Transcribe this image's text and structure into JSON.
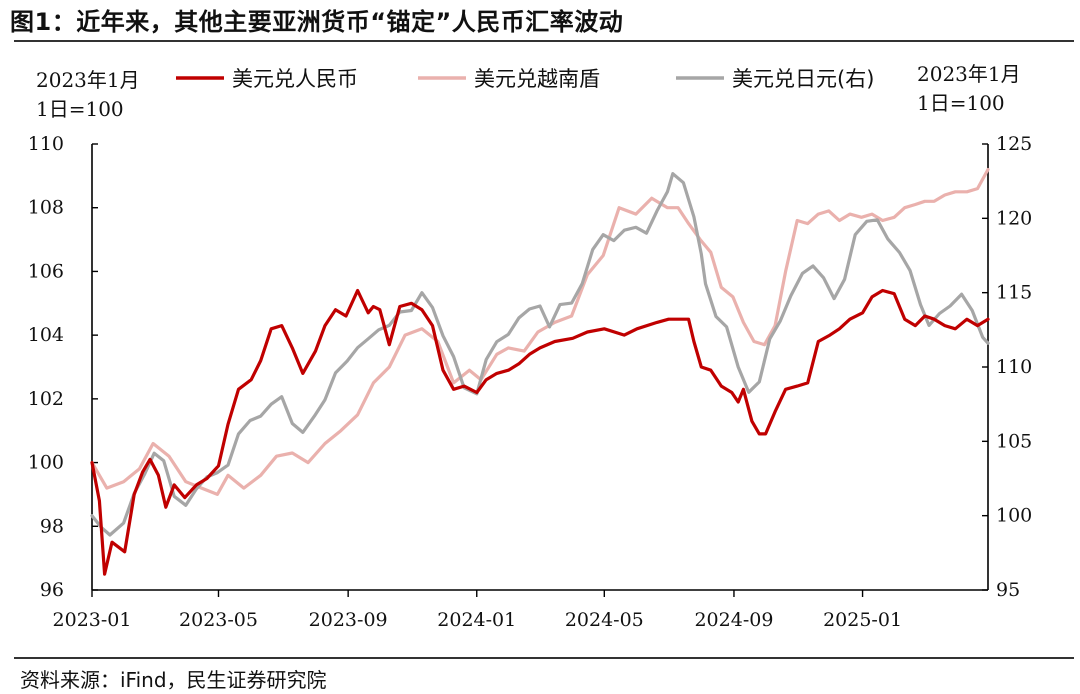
{
  "figure": {
    "title": "图1：近年来，其他主要亚洲货币“锚定”人民币汇率波动",
    "source": "资料来源：iFind，民生证券研究院",
    "left_unit": [
      "2023年1月",
      "1日=100"
    ],
    "right_unit": [
      "2023年1月",
      "1日=100"
    ]
  },
  "chart_data": {
    "type": "line",
    "x_labels": [
      "2023-01",
      "2023-05",
      "2023-09",
      "2024-01",
      "2024-05",
      "2024-09",
      "2025-01"
    ],
    "x_range": [
      "2023-01-01",
      "2025-04-30"
    ],
    "y_left": {
      "range": [
        96,
        110
      ],
      "ticks": [
        96,
        98,
        100,
        102,
        104,
        106,
        108,
        110
      ]
    },
    "y_right": {
      "range": [
        95,
        125
      ],
      "ticks": [
        95,
        100,
        105,
        110,
        115,
        120,
        125
      ]
    },
    "legend": {
      "placement": "top"
    },
    "series": [
      {
        "name": "美元兑人民币",
        "axis": "left",
        "color": "#c00000",
        "points": [
          [
            "2023-01-01",
            100.0
          ],
          [
            "2023-01-08",
            98.8
          ],
          [
            "2023-01-13",
            96.5
          ],
          [
            "2023-01-20",
            97.5
          ],
          [
            "2023-02-01",
            97.2
          ],
          [
            "2023-02-10",
            99.0
          ],
          [
            "2023-02-18",
            99.7
          ],
          [
            "2023-02-25",
            100.1
          ],
          [
            "2023-03-05",
            99.6
          ],
          [
            "2023-03-12",
            98.6
          ],
          [
            "2023-03-20",
            99.3
          ],
          [
            "2023-03-30",
            98.9
          ],
          [
            "2023-04-10",
            99.3
          ],
          [
            "2023-04-20",
            99.5
          ],
          [
            "2023-05-01",
            99.9
          ],
          [
            "2023-05-10",
            101.2
          ],
          [
            "2023-05-20",
            102.3
          ],
          [
            "2023-06-01",
            102.6
          ],
          [
            "2023-06-10",
            103.2
          ],
          [
            "2023-06-20",
            104.2
          ],
          [
            "2023-06-30",
            104.3
          ],
          [
            "2023-07-10",
            103.6
          ],
          [
            "2023-07-20",
            102.8
          ],
          [
            "2023-08-01",
            103.5
          ],
          [
            "2023-08-10",
            104.3
          ],
          [
            "2023-08-20",
            104.8
          ],
          [
            "2023-08-30",
            104.6
          ],
          [
            "2023-09-10",
            105.4
          ],
          [
            "2023-09-20",
            104.7
          ],
          [
            "2023-09-25",
            104.9
          ],
          [
            "2023-10-01",
            104.8
          ],
          [
            "2023-10-10",
            103.7
          ],
          [
            "2023-10-20",
            104.9
          ],
          [
            "2023-10-31",
            105.0
          ],
          [
            "2023-11-10",
            104.8
          ],
          [
            "2023-11-20",
            104.3
          ],
          [
            "2023-11-30",
            102.9
          ],
          [
            "2023-12-10",
            102.3
          ],
          [
            "2023-12-20",
            102.4
          ],
          [
            "2024-01-01",
            102.2
          ],
          [
            "2024-01-10",
            102.6
          ],
          [
            "2024-01-20",
            102.8
          ],
          [
            "2024-01-31",
            102.9
          ],
          [
            "2024-02-10",
            103.1
          ],
          [
            "2024-02-20",
            103.4
          ],
          [
            "2024-03-01",
            103.6
          ],
          [
            "2024-03-15",
            103.8
          ],
          [
            "2024-04-01",
            103.9
          ],
          [
            "2024-04-15",
            104.1
          ],
          [
            "2024-05-01",
            104.2
          ],
          [
            "2024-05-20",
            104.0
          ],
          [
            "2024-06-01",
            104.2
          ],
          [
            "2024-06-20",
            104.4
          ],
          [
            "2024-07-01",
            104.5
          ],
          [
            "2024-07-20",
            104.5
          ],
          [
            "2024-07-25",
            103.8
          ],
          [
            "2024-08-01",
            103.0
          ],
          [
            "2024-08-10",
            102.9
          ],
          [
            "2024-08-20",
            102.4
          ],
          [
            "2024-08-30",
            102.2
          ],
          [
            "2024-09-05",
            101.9
          ],
          [
            "2024-09-10",
            102.3
          ],
          [
            "2024-09-18",
            101.3
          ],
          [
            "2024-09-25",
            100.9
          ],
          [
            "2024-10-01",
            100.9
          ],
          [
            "2024-10-10",
            101.6
          ],
          [
            "2024-10-20",
            102.3
          ],
          [
            "2024-10-31",
            102.4
          ],
          [
            "2024-11-10",
            102.5
          ],
          [
            "2024-11-20",
            103.8
          ],
          [
            "2024-12-01",
            104.0
          ],
          [
            "2024-12-10",
            104.2
          ],
          [
            "2024-12-20",
            104.5
          ],
          [
            "2025-01-01",
            104.7
          ],
          [
            "2025-01-10",
            105.2
          ],
          [
            "2025-01-20",
            105.4
          ],
          [
            "2025-01-31",
            105.3
          ],
          [
            "2025-02-10",
            104.5
          ],
          [
            "2025-02-20",
            104.3
          ],
          [
            "2025-03-01",
            104.6
          ],
          [
            "2025-03-10",
            104.5
          ],
          [
            "2025-03-20",
            104.3
          ],
          [
            "2025-03-30",
            104.2
          ],
          [
            "2025-04-10",
            104.5
          ],
          [
            "2025-04-20",
            104.3
          ],
          [
            "2025-04-30",
            104.5
          ]
        ]
      },
      {
        "name": "美元兑越南盾",
        "axis": "left",
        "color": "#eab1ad",
        "points": [
          [
            "2023-01-01",
            100.0
          ],
          [
            "2023-01-15",
            99.2
          ],
          [
            "2023-01-31",
            99.4
          ],
          [
            "2023-02-15",
            99.8
          ],
          [
            "2023-02-28",
            100.6
          ],
          [
            "2023-03-15",
            100.2
          ],
          [
            "2023-03-31",
            99.4
          ],
          [
            "2023-04-15",
            99.2
          ],
          [
            "2023-04-30",
            99.0
          ],
          [
            "2023-05-10",
            99.6
          ],
          [
            "2023-05-25",
            99.2
          ],
          [
            "2023-06-10",
            99.6
          ],
          [
            "2023-06-25",
            100.2
          ],
          [
            "2023-07-10",
            100.3
          ],
          [
            "2023-07-25",
            100.0
          ],
          [
            "2023-08-10",
            100.6
          ],
          [
            "2023-08-25",
            101.0
          ],
          [
            "2023-09-10",
            101.5
          ],
          [
            "2023-09-25",
            102.5
          ],
          [
            "2023-10-10",
            103.0
          ],
          [
            "2023-10-25",
            104.0
          ],
          [
            "2023-11-10",
            104.2
          ],
          [
            "2023-11-25",
            103.8
          ],
          [
            "2023-12-10",
            102.5
          ],
          [
            "2023-12-25",
            102.9
          ],
          [
            "2024-01-05",
            102.6
          ],
          [
            "2024-01-20",
            103.4
          ],
          [
            "2024-01-31",
            103.6
          ],
          [
            "2024-02-15",
            103.5
          ],
          [
            "2024-02-28",
            104.1
          ],
          [
            "2024-03-15",
            104.4
          ],
          [
            "2024-03-31",
            104.6
          ],
          [
            "2024-04-15",
            105.9
          ],
          [
            "2024-04-30",
            106.5
          ],
          [
            "2024-05-15",
            108.0
          ],
          [
            "2024-05-31",
            107.8
          ],
          [
            "2024-06-15",
            108.3
          ],
          [
            "2024-06-30",
            108.0
          ],
          [
            "2024-07-10",
            108.0
          ],
          [
            "2024-07-20",
            107.5
          ],
          [
            "2024-07-31",
            107.0
          ],
          [
            "2024-08-10",
            106.6
          ],
          [
            "2024-08-20",
            105.5
          ],
          [
            "2024-08-31",
            105.2
          ],
          [
            "2024-09-10",
            104.4
          ],
          [
            "2024-09-20",
            103.8
          ],
          [
            "2024-09-30",
            103.7
          ],
          [
            "2024-10-10",
            104.3
          ],
          [
            "2024-10-20",
            106.0
          ],
          [
            "2024-10-31",
            107.6
          ],
          [
            "2024-11-10",
            107.5
          ],
          [
            "2024-11-20",
            107.8
          ],
          [
            "2024-11-30",
            107.9
          ],
          [
            "2024-12-10",
            107.6
          ],
          [
            "2024-12-20",
            107.8
          ],
          [
            "2024-12-31",
            107.7
          ],
          [
            "2025-01-10",
            107.8
          ],
          [
            "2025-01-20",
            107.6
          ],
          [
            "2025-01-31",
            107.7
          ],
          [
            "2025-02-10",
            108.0
          ],
          [
            "2025-02-20",
            108.1
          ],
          [
            "2025-03-01",
            108.2
          ],
          [
            "2025-03-10",
            108.2
          ],
          [
            "2025-03-20",
            108.4
          ],
          [
            "2025-03-30",
            108.5
          ],
          [
            "2025-04-10",
            108.5
          ],
          [
            "2025-04-20",
            108.6
          ],
          [
            "2025-04-30",
            109.2
          ]
        ]
      },
      {
        "name": "美元兑日元(右)",
        "axis": "right",
        "color": "#a6a6a6",
        "points": [
          [
            "2023-01-01",
            100.0
          ],
          [
            "2023-01-10",
            99.2
          ],
          [
            "2023-01-18",
            98.7
          ],
          [
            "2023-01-31",
            99.5
          ],
          [
            "2023-02-10",
            101.5
          ],
          [
            "2023-02-20",
            102.8
          ],
          [
            "2023-03-01",
            104.2
          ],
          [
            "2023-03-10",
            103.7
          ],
          [
            "2023-03-20",
            101.3
          ],
          [
            "2023-03-31",
            100.7
          ],
          [
            "2023-04-10",
            101.8
          ],
          [
            "2023-04-20",
            102.6
          ],
          [
            "2023-04-30",
            102.9
          ],
          [
            "2023-05-10",
            103.4
          ],
          [
            "2023-05-20",
            105.5
          ],
          [
            "2023-05-31",
            106.4
          ],
          [
            "2023-06-10",
            106.7
          ],
          [
            "2023-06-20",
            107.5
          ],
          [
            "2023-06-30",
            108.0
          ],
          [
            "2023-07-10",
            106.2
          ],
          [
            "2023-07-20",
            105.6
          ],
          [
            "2023-07-31",
            106.7
          ],
          [
            "2023-08-10",
            107.8
          ],
          [
            "2023-08-20",
            109.6
          ],
          [
            "2023-08-31",
            110.4
          ],
          [
            "2023-09-10",
            111.3
          ],
          [
            "2023-09-20",
            111.9
          ],
          [
            "2023-09-30",
            112.5
          ],
          [
            "2023-10-10",
            112.8
          ],
          [
            "2023-10-20",
            113.7
          ],
          [
            "2023-10-31",
            113.8
          ],
          [
            "2023-11-10",
            115.0
          ],
          [
            "2023-11-20",
            114.0
          ],
          [
            "2023-11-30",
            112.1
          ],
          [
            "2023-12-10",
            110.7
          ],
          [
            "2023-12-20",
            108.6
          ],
          [
            "2024-01-01",
            108.2
          ],
          [
            "2024-01-10",
            110.5
          ],
          [
            "2024-01-20",
            111.7
          ],
          [
            "2024-01-31",
            112.2
          ],
          [
            "2024-02-10",
            113.3
          ],
          [
            "2024-02-20",
            113.9
          ],
          [
            "2024-03-01",
            114.1
          ],
          [
            "2024-03-10",
            112.7
          ],
          [
            "2024-03-20",
            114.2
          ],
          [
            "2024-03-31",
            114.3
          ],
          [
            "2024-04-10",
            115.6
          ],
          [
            "2024-04-20",
            117.9
          ],
          [
            "2024-04-30",
            118.9
          ],
          [
            "2024-05-10",
            118.5
          ],
          [
            "2024-05-20",
            119.2
          ],
          [
            "2024-05-31",
            119.4
          ],
          [
            "2024-06-10",
            119.0
          ],
          [
            "2024-06-20",
            120.5
          ],
          [
            "2024-06-30",
            121.8
          ],
          [
            "2024-07-05",
            123.0
          ],
          [
            "2024-07-15",
            122.4
          ],
          [
            "2024-07-25",
            120.1
          ],
          [
            "2024-08-01",
            117.6
          ],
          [
            "2024-08-05",
            115.6
          ],
          [
            "2024-08-15",
            113.4
          ],
          [
            "2024-08-25",
            112.7
          ],
          [
            "2024-09-05",
            110.0
          ],
          [
            "2024-09-15",
            108.3
          ],
          [
            "2024-09-25",
            109.0
          ],
          [
            "2024-10-05",
            111.9
          ],
          [
            "2024-10-15",
            113.1
          ],
          [
            "2024-10-25",
            114.8
          ],
          [
            "2024-11-05",
            116.3
          ],
          [
            "2024-11-15",
            116.8
          ],
          [
            "2024-11-25",
            116.0
          ],
          [
            "2024-12-05",
            114.6
          ],
          [
            "2024-12-15",
            115.9
          ],
          [
            "2024-12-25",
            118.9
          ],
          [
            "2025-01-05",
            119.8
          ],
          [
            "2025-01-15",
            119.9
          ],
          [
            "2025-01-25",
            118.6
          ],
          [
            "2025-02-05",
            117.7
          ],
          [
            "2025-02-15",
            116.5
          ],
          [
            "2025-02-25",
            114.2
          ],
          [
            "2025-03-05",
            112.8
          ],
          [
            "2025-03-15",
            113.6
          ],
          [
            "2025-03-25",
            114.1
          ],
          [
            "2025-04-05",
            114.9
          ],
          [
            "2025-04-15",
            113.8
          ],
          [
            "2025-04-25",
            112.0
          ],
          [
            "2025-04-30",
            111.6
          ]
        ]
      }
    ]
  }
}
